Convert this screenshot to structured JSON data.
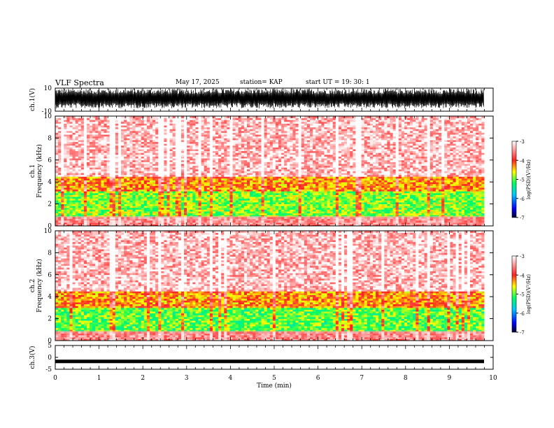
{
  "header": {
    "title": "VLF Spectra",
    "date": "May 17, 2025",
    "station": "station= KAP",
    "start_time": "start  UT =    19: 30: 1"
  },
  "chart_data": [
    {
      "type": "line",
      "id": "ch1-waveform",
      "ylabel": "ch.1(V)",
      "ylim": [
        -10,
        10
      ],
      "yticks": [
        "10",
        "-10"
      ],
      "xlim": [
        0,
        10
      ],
      "color": "#000000",
      "description_of_signal": "dense oscillation mostly between -7 and +9 V"
    },
    {
      "type": "heatmap",
      "id": "ch1-spectrogram",
      "ylabel_line1": "ch.1",
      "ylabel_line2": "Frequency (kHz)",
      "ylim": [
        0,
        10
      ],
      "yticks": [
        "0",
        "2",
        "4",
        "6",
        "8",
        "10"
      ],
      "xlim": [
        0,
        9.8
      ],
      "colorbar": {
        "label": "log(PSD)(V²/Hz)",
        "range": [
          -7,
          -3
        ],
        "ticks": [
          "-3",
          "-4",
          "-5",
          "-6",
          "-7"
        ]
      },
      "bands": [
        {
          "from_khz": 0,
          "to_khz": 0.8,
          "level": -3.6
        },
        {
          "from_khz": 0.8,
          "to_khz": 3.2,
          "level": -4.9
        },
        {
          "from_khz": 3.2,
          "to_khz": 4.5,
          "level": -4.3
        },
        {
          "from_khz": 4.5,
          "to_khz": 10,
          "level": -3.3
        }
      ]
    },
    {
      "type": "heatmap",
      "id": "ch2-spectrogram",
      "ylabel_line1": "ch.2",
      "ylabel_line2": "Frequency (kHz)",
      "ylim": [
        0,
        10
      ],
      "yticks": [
        "0",
        "2",
        "4",
        "6",
        "8",
        "10"
      ],
      "xlim": [
        0,
        9.8
      ],
      "colorbar": {
        "label": "log(PSD)(V²/Hz)",
        "range": [
          -7,
          -3
        ],
        "ticks": [
          "-3",
          "-4",
          "-5",
          "-6",
          "-7"
        ]
      },
      "bands": [
        {
          "from_khz": 0,
          "to_khz": 0.8,
          "level": -3.6
        },
        {
          "from_khz": 0.8,
          "to_khz": 3.0,
          "level": -5.0
        },
        {
          "from_khz": 3.0,
          "to_khz": 4.5,
          "level": -4.3
        },
        {
          "from_khz": 4.5,
          "to_khz": 10,
          "level": -3.3
        }
      ]
    },
    {
      "type": "line",
      "id": "ch3-waveform",
      "ylabel": "ch.3(V)",
      "ylim": [
        -5,
        5
      ],
      "yticks": [
        "5",
        "0",
        "-5"
      ],
      "xlim": [
        0,
        10
      ],
      "xlabel": "Time (min)",
      "xticks": [
        "0",
        "1",
        "2",
        "3",
        "4",
        "5",
        "6",
        "7",
        "8",
        "9",
        "10"
      ],
      "level": -1.7,
      "color": "#000000"
    }
  ]
}
